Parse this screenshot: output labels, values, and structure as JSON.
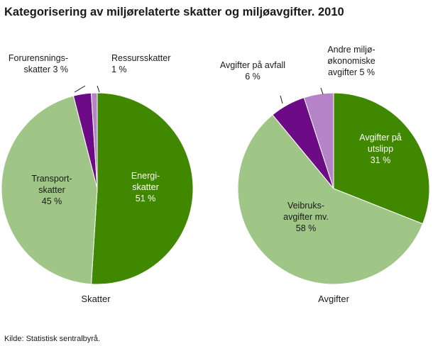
{
  "title": "Kategorisering av miljørelaterte skatter og miljøavgifter. 2010",
  "source": "Kilde: Statistisk sentralbyrå.",
  "colors": {
    "dark_green": "#3f8800",
    "light_green": "#9fc687",
    "dark_purple": "#6d0b86",
    "light_purple": "#b483c8"
  },
  "chart_data": [
    {
      "type": "pie",
      "caption": "Skatter",
      "slices": [
        {
          "label": [
            "Energi-",
            "skatter",
            "51 %"
          ],
          "value": 51,
          "color": "#3f8800"
        },
        {
          "label": [
            "Transport-",
            "skatter",
            "45 %"
          ],
          "value": 45,
          "color": "#9fc687"
        },
        {
          "label": [
            "Forurensnings-",
            "skatter 3 %"
          ],
          "value": 3,
          "color": "#6d0b86"
        },
        {
          "label": [
            "Ressursskatter",
            "1 %"
          ],
          "value": 1,
          "color": "#b483c8"
        }
      ]
    },
    {
      "type": "pie",
      "caption": "Avgifter",
      "slices": [
        {
          "label": [
            "Avgifter på",
            "utslipp",
            "31 %"
          ],
          "value": 31,
          "color": "#3f8800"
        },
        {
          "label": [
            "Veibruks-",
            "avgifter mv.",
            "58 %"
          ],
          "value": 58,
          "color": "#9fc687"
        },
        {
          "label": [
            "Avgifter på avfall",
            "6 %"
          ],
          "value": 6,
          "color": "#6d0b86"
        },
        {
          "label": [
            "Andre miljø-",
            "økonomiske",
            "avgifter  5 %"
          ],
          "value": 5,
          "color": "#b483c8"
        }
      ]
    }
  ]
}
